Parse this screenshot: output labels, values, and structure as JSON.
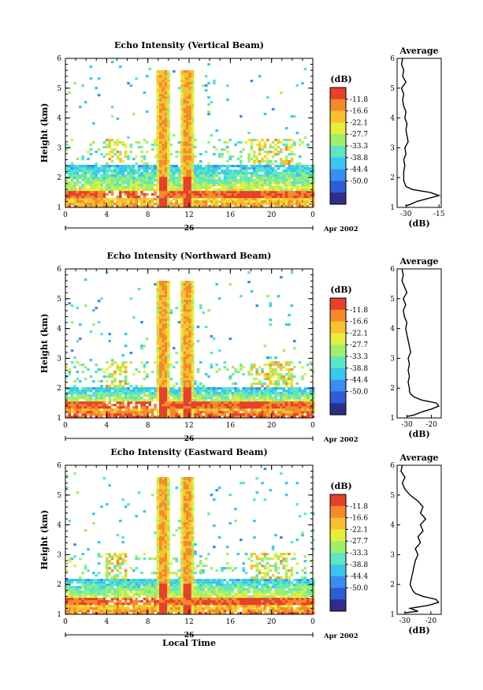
{
  "chart_data": [
    {
      "type": "heatmap",
      "title": "Echo Intensity (Vertical Beam)",
      "xlabel": "",
      "ylabel": "Height (km)",
      "xlim": [
        0,
        24
      ],
      "ylim": [
        1,
        6
      ],
      "x_ticks": [
        "0",
        "4",
        "8",
        "12",
        "16",
        "20",
        "0"
      ],
      "y_ticks": [
        "1",
        "2",
        "3",
        "4",
        "5",
        "6"
      ],
      "date_day": "26",
      "date_label": "Apr 2002",
      "colorbar": {
        "unit": "(dB)",
        "ticks": [
          "-11.8",
          "-16.6",
          "-22.1",
          "-27.7",
          "-33.3",
          "-38.8",
          "-44.4",
          "-50.0"
        ]
      },
      "features": {
        "surface_layer_km": 1.45,
        "columns_hours": [
          9.5,
          11.8
        ],
        "boundary_layer_top_km": 2.4
      },
      "profile": {
        "title": "Average",
        "xlabel": "(dB)",
        "x_ticks": [
          "-30",
          "-15"
        ],
        "xlim": [
          -34,
          -14
        ],
        "heights_km": [
          1.05,
          1.1,
          1.2,
          1.3,
          1.4,
          1.5,
          1.6,
          1.7,
          1.8,
          1.9,
          2.0,
          2.2,
          2.4,
          2.6,
          2.8,
          3.0,
          3.2,
          3.4,
          3.6,
          3.8,
          4.0,
          4.2,
          4.4,
          4.6,
          4.8,
          5.0,
          5.2,
          5.4,
          5.6,
          5.8,
          6.0
        ],
        "values_db": [
          -30,
          -28,
          -25,
          -20,
          -15,
          -19,
          -27,
          -30,
          -30.5,
          -31,
          -31,
          -31,
          -30.5,
          -31,
          -30,
          -30.5,
          -29,
          -29.5,
          -30,
          -29.5,
          -30.5,
          -30,
          -31,
          -31.5,
          -31,
          -32,
          -30,
          -31.5,
          -31,
          -32,
          -31.5
        ]
      }
    },
    {
      "type": "heatmap",
      "title": "Echo Intensity (Northward Beam)",
      "xlabel": "",
      "ylabel": "Height (km)",
      "xlim": [
        0,
        24
      ],
      "ylim": [
        1,
        6
      ],
      "x_ticks": [
        "0",
        "4",
        "8",
        "12",
        "16",
        "20",
        "0"
      ],
      "y_ticks": [
        "1",
        "2",
        "3",
        "4",
        "5",
        "6"
      ],
      "date_day": "26",
      "date_label": "Apr 2002",
      "colorbar": {
        "unit": "(dB)",
        "ticks": [
          "-11.8",
          "-16.6",
          "-22.1",
          "-27.7",
          "-33.3",
          "-38.8",
          "-44.4",
          "-50.0"
        ]
      },
      "features": {
        "surface_layer_km": 1.45,
        "columns_hours": [
          9.5,
          11.8
        ],
        "boundary_layer_top_km": 2.0
      },
      "profile": {
        "title": "Average",
        "xlabel": "(dB)",
        "x_ticks": [
          "-30",
          "-20"
        ],
        "xlim": [
          -34,
          -16
        ],
        "heights_km": [
          1.05,
          1.1,
          1.2,
          1.3,
          1.4,
          1.5,
          1.6,
          1.7,
          1.8,
          1.9,
          2.0,
          2.2,
          2.4,
          2.6,
          2.8,
          3.0,
          3.2,
          3.4,
          3.6,
          3.8,
          4.0,
          4.2,
          4.4,
          4.6,
          4.8,
          5.0,
          5.2,
          5.4,
          5.6,
          5.8,
          6.0
        ],
        "values_db": [
          -30,
          -27,
          -24,
          -20,
          -17,
          -18,
          -24,
          -27,
          -28.5,
          -29,
          -29,
          -29.5,
          -29,
          -29.5,
          -29,
          -29.5,
          -28.5,
          -29,
          -29.5,
          -30,
          -30.5,
          -30,
          -31,
          -31.5,
          -30.5,
          -31.5,
          -30,
          -31,
          -32,
          -31.5,
          -32
        ]
      }
    },
    {
      "type": "heatmap",
      "title": "Echo Intensity (Eastward Beam)",
      "xlabel": "Local Time",
      "ylabel": "Height (km)",
      "xlim": [
        0,
        24
      ],
      "ylim": [
        1,
        6
      ],
      "x_ticks": [
        "0",
        "4",
        "8",
        "12",
        "16",
        "20",
        "0"
      ],
      "y_ticks": [
        "1",
        "2",
        "3",
        "4",
        "5",
        "6"
      ],
      "date_day": "26",
      "date_label": "Apr 2002",
      "colorbar": {
        "unit": "(dB)",
        "ticks": [
          "-11.8",
          "-16.6",
          "-22.1",
          "-27.7",
          "-33.3",
          "-38.8",
          "-44.4",
          "-50.0"
        ]
      },
      "features": {
        "surface_layer_km": 1.45,
        "columns_hours": [
          9.5,
          11.8
        ],
        "boundary_layer_top_km": 2.2
      },
      "profile": {
        "title": "Average",
        "xlabel": "(dB)",
        "x_ticks": [
          "-30",
          "-20"
        ],
        "xlim": [
          -33,
          -16
        ],
        "heights_km": [
          1.05,
          1.1,
          1.2,
          1.3,
          1.4,
          1.5,
          1.6,
          1.7,
          1.8,
          1.9,
          2.0,
          2.2,
          2.4,
          2.6,
          2.8,
          3.0,
          3.2,
          3.4,
          3.6,
          3.8,
          4.0,
          4.2,
          4.4,
          4.6,
          4.8,
          5.0,
          5.2,
          5.4,
          5.6,
          5.8,
          6.0
        ],
        "values_db": [
          -30,
          -25,
          -28,
          -21,
          -17,
          -18,
          -23,
          -26,
          -27,
          -27.5,
          -28,
          -27.5,
          -27,
          -26.5,
          -26,
          -25,
          -26,
          -24,
          -25,
          -23,
          -24,
          -22,
          -24,
          -23,
          -25,
          -28,
          -30,
          -31,
          -30,
          -31.5,
          -31
        ]
      }
    }
  ]
}
